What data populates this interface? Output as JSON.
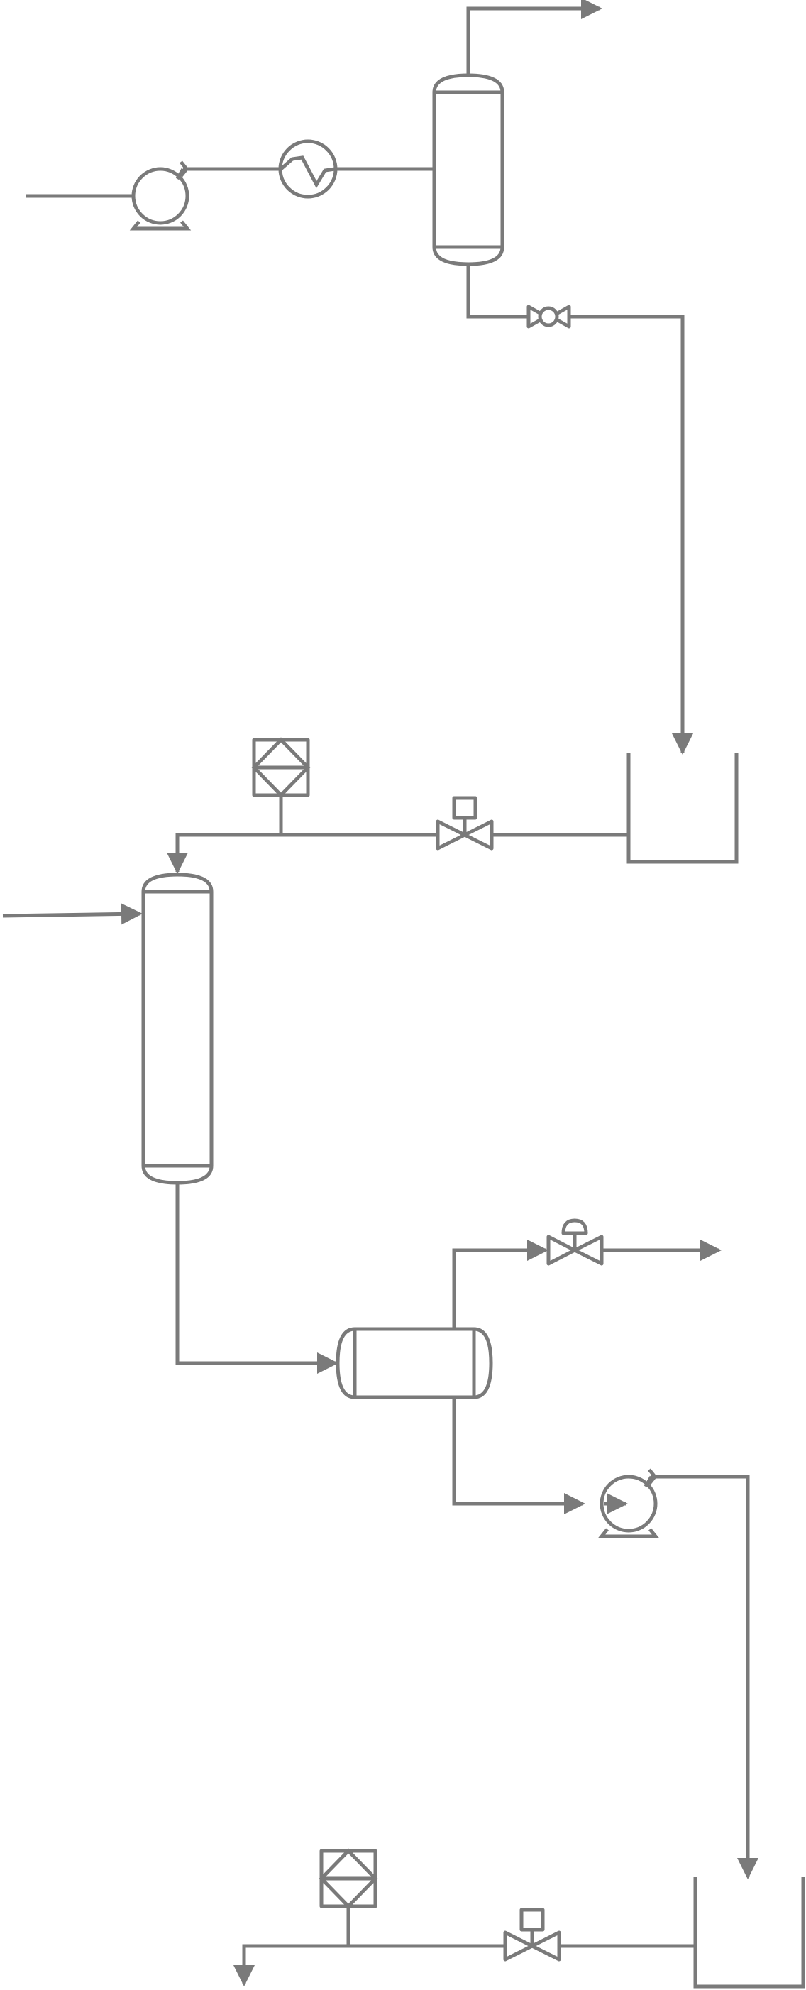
{
  "diagram": {
    "type": "process-flow-diagram",
    "colors": {
      "line": "#7a7a7a",
      "background": "#ffffff"
    },
    "equipment": [
      {
        "id": "feed-pump-1",
        "kind": "centrifugal-pump"
      },
      {
        "id": "heat-exchanger-1",
        "kind": "heat-exchanger"
      },
      {
        "id": "vertical-vessel-1",
        "kind": "vertical-vessel"
      },
      {
        "id": "rotary-valve-1",
        "kind": "rotary-valve"
      },
      {
        "id": "open-tank-1",
        "kind": "open-tank"
      },
      {
        "id": "control-valve-1",
        "kind": "control-valve"
      },
      {
        "id": "filter-1",
        "kind": "filter"
      },
      {
        "id": "column-1",
        "kind": "vertical-column"
      },
      {
        "id": "horizontal-drum-1",
        "kind": "horizontal-vessel"
      },
      {
        "id": "vent-valve-1",
        "kind": "diaphragm-valve"
      },
      {
        "id": "transfer-pump-1",
        "kind": "centrifugal-pump"
      },
      {
        "id": "open-tank-2",
        "kind": "open-tank"
      },
      {
        "id": "control-valve-2",
        "kind": "control-valve"
      },
      {
        "id": "filter-2",
        "kind": "filter"
      }
    ],
    "connections": [
      {
        "from": "feed-inlet",
        "to": "feed-pump-1"
      },
      {
        "from": "feed-pump-1",
        "to": "heat-exchanger-1"
      },
      {
        "from": "heat-exchanger-1",
        "to": "vertical-vessel-1"
      },
      {
        "from": "vertical-vessel-1",
        "to": "top-outlet"
      },
      {
        "from": "vertical-vessel-1",
        "to": "rotary-valve-1"
      },
      {
        "from": "rotary-valve-1",
        "to": "open-tank-1"
      },
      {
        "from": "open-tank-1",
        "to": "control-valve-1"
      },
      {
        "from": "control-valve-1",
        "to": "column-1"
      },
      {
        "from": "filter-1",
        "to": "column-1"
      },
      {
        "from": "side-inlet",
        "to": "column-1"
      },
      {
        "from": "column-1",
        "to": "horizontal-drum-1"
      },
      {
        "from": "horizontal-drum-1",
        "to": "vent-valve-1"
      },
      {
        "from": "vent-valve-1",
        "to": "vent-outlet"
      },
      {
        "from": "horizontal-drum-1",
        "to": "transfer-pump-1"
      },
      {
        "from": "transfer-pump-1",
        "to": "open-tank-2"
      },
      {
        "from": "open-tank-2",
        "to": "control-valve-2"
      },
      {
        "from": "control-valve-2",
        "to": "bottom-outlet"
      },
      {
        "from": "filter-2",
        "to": "bottom-outlet"
      }
    ]
  }
}
